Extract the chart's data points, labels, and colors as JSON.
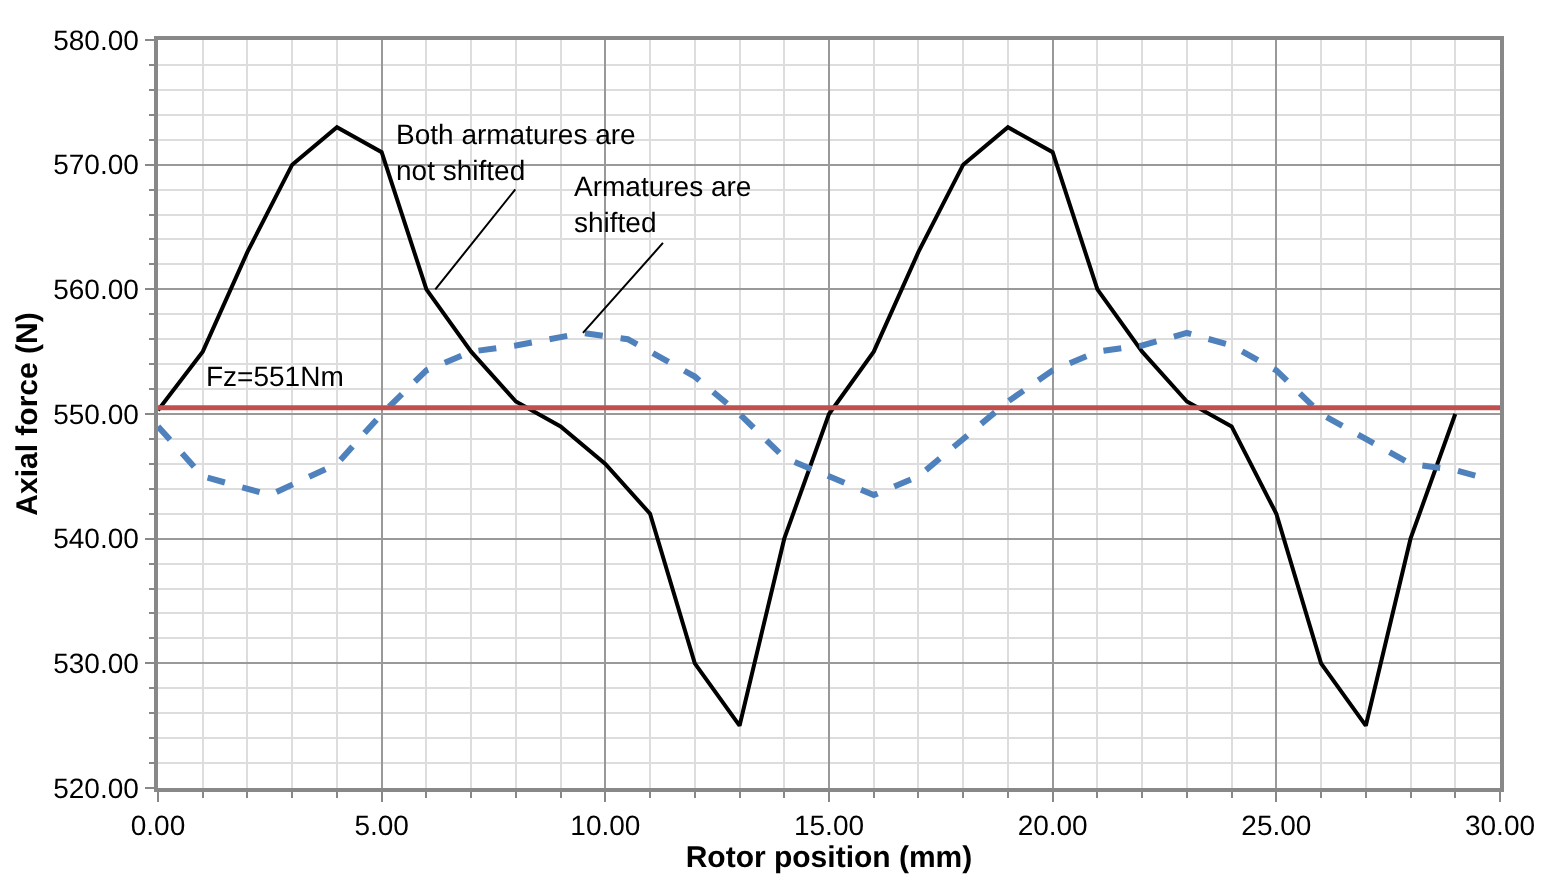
{
  "chart_data": {
    "type": "line",
    "xlabel": "Rotor position (mm)",
    "ylabel": "Axial force (N)",
    "xlim": [
      0,
      30
    ],
    "ylim": [
      520,
      580
    ],
    "xticks": [
      {
        "value": 0,
        "label": "0.00"
      },
      {
        "value": 5,
        "label": "5.00"
      },
      {
        "value": 10,
        "label": "10.00"
      },
      {
        "value": 15,
        "label": "15.00"
      },
      {
        "value": 20,
        "label": "20.00"
      },
      {
        "value": 25,
        "label": "25.00"
      },
      {
        "value": 30,
        "label": "30.00"
      }
    ],
    "yticks": [
      {
        "value": 520,
        "label": "520.00"
      },
      {
        "value": 530,
        "label": "530.00"
      },
      {
        "value": 540,
        "label": "540.00"
      },
      {
        "value": 550,
        "label": "550.00"
      },
      {
        "value": 560,
        "label": "560.00"
      },
      {
        "value": 570,
        "label": "570.00"
      },
      {
        "value": 580,
        "label": "580.00"
      }
    ],
    "grid": true,
    "marker": "none",
    "series": [
      {
        "color": "#000000",
        "line_style": "solid",
        "x": [
          0,
          1,
          2,
          3,
          4,
          5,
          6,
          7,
          8,
          9,
          10,
          11,
          12,
          13,
          14,
          15,
          16,
          17,
          18,
          19,
          20,
          21,
          22,
          23,
          24,
          25,
          26,
          27,
          28,
          29
        ],
        "values": [
          550.3,
          555,
          563,
          570,
          573,
          571,
          560,
          555,
          551,
          549,
          546,
          542,
          530,
          525,
          540,
          550,
          555,
          563,
          570,
          573,
          571,
          560,
          555,
          551,
          549,
          542,
          530,
          525,
          540,
          550
        ]
      },
      {
        "color": "#4f81bd",
        "line_style": "dashed",
        "x": [
          0,
          1,
          2.5,
          4,
          5,
          6,
          7,
          8,
          9.5,
          10.5,
          12,
          13,
          14,
          15,
          16,
          17,
          18,
          19,
          20,
          21,
          22,
          23,
          24,
          25,
          26,
          27,
          28,
          29,
          29.5
        ],
        "values": [
          549,
          545,
          543.5,
          546,
          550,
          553.5,
          555,
          555.5,
          556.5,
          556,
          553,
          550,
          546.5,
          545,
          543.5,
          545,
          548,
          551,
          553.5,
          555,
          555.5,
          556.5,
          555.5,
          553.5,
          550,
          548,
          546,
          545.5,
          545
        ]
      }
    ],
    "ref_lines": [
      {
        "axis": "y",
        "value": 550.5,
        "label": "Fz=551Nm",
        "color": "#c0504d"
      }
    ],
    "annotations": [
      {
        "text": "Both armatures are\nnot shifted",
        "x": 6.2,
        "y": 560
      },
      {
        "text": "Armatures are\nshifted",
        "x": 9.5,
        "y": 556.5
      }
    ]
  }
}
